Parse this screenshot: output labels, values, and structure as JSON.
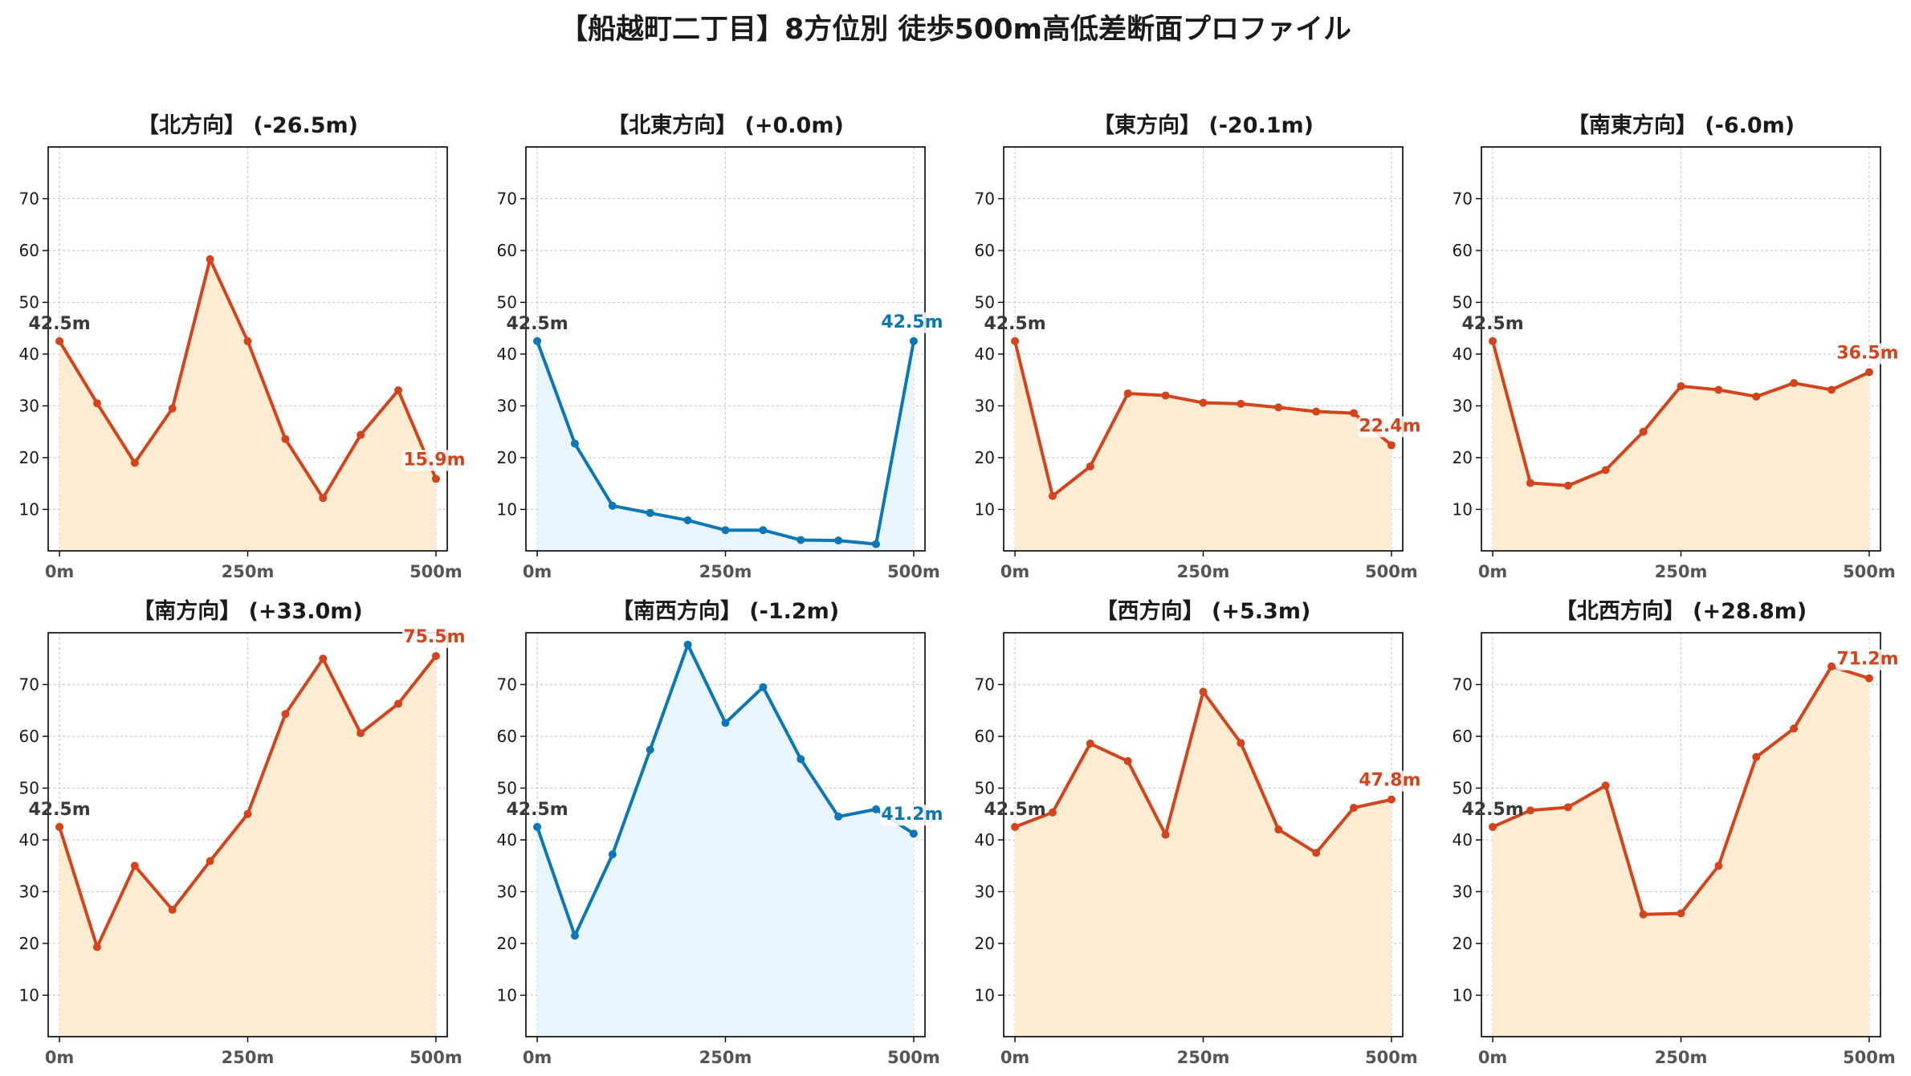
{
  "title": "【船越町二丁目】8方位別 徒歩500m高低差断面プロファイル",
  "colors": {
    "down_line": "#d4441c",
    "down_fill": "#fdebd2",
    "up_line": "#0b77b7",
    "up_fill": "#e9f5fc",
    "start_label": "#3a3a3a",
    "grid": "#c9c9c9"
  },
  "chart_data": [
    {
      "type": "area",
      "title": "【北方向】 (-26.5m)",
      "theme": "orange",
      "x": [
        0,
        50,
        100,
        150,
        200,
        250,
        300,
        350,
        400,
        450,
        500
      ],
      "y": [
        42.5,
        30.5,
        19.0,
        29.5,
        58.3,
        42.5,
        23.6,
        12.2,
        24.4,
        33.0,
        15.9
      ],
      "start_label": "42.5m",
      "end_label": "15.9m",
      "xticks": [
        0,
        250,
        500
      ],
      "xtick_labels": [
        "0m",
        "250m",
        "500m"
      ],
      "yticks": [
        10,
        20,
        30,
        40,
        50,
        60,
        70
      ],
      "ylim": [
        2,
        80
      ],
      "xlim": [
        -15,
        515
      ],
      "grid": true
    },
    {
      "type": "area",
      "title": "【北東方向】 (+0.0m)",
      "theme": "blue",
      "x": [
        0,
        50,
        100,
        150,
        200,
        250,
        300,
        350,
        400,
        450,
        500
      ],
      "y": [
        42.5,
        22.7,
        10.7,
        9.3,
        7.9,
        6.0,
        6.0,
        4.1,
        4.0,
        3.3,
        42.5
      ],
      "start_label": "42.5m",
      "end_label": "42.5m",
      "xticks": [
        0,
        250,
        500
      ],
      "xtick_labels": [
        "0m",
        "250m",
        "500m"
      ],
      "yticks": [
        10,
        20,
        30,
        40,
        50,
        60,
        70
      ],
      "ylim": [
        2,
        80
      ],
      "xlim": [
        -15,
        515
      ],
      "grid": true
    },
    {
      "type": "area",
      "title": "【東方向】 (-20.1m)",
      "theme": "orange",
      "x": [
        0,
        50,
        100,
        150,
        200,
        250,
        300,
        350,
        400,
        450,
        500
      ],
      "y": [
        42.5,
        12.6,
        18.3,
        32.4,
        32.0,
        30.6,
        30.4,
        29.7,
        28.9,
        28.6,
        22.4
      ],
      "start_label": "42.5m",
      "end_label": "22.4m",
      "xticks": [
        0,
        250,
        500
      ],
      "xtick_labels": [
        "0m",
        "250m",
        "500m"
      ],
      "yticks": [
        10,
        20,
        30,
        40,
        50,
        60,
        70
      ],
      "ylim": [
        2,
        80
      ],
      "xlim": [
        -15,
        515
      ],
      "grid": true
    },
    {
      "type": "area",
      "title": "【南東方向】 (-6.0m)",
      "theme": "orange",
      "x": [
        0,
        50,
        100,
        150,
        200,
        250,
        300,
        350,
        400,
        450,
        500
      ],
      "y": [
        42.5,
        15.1,
        14.6,
        17.6,
        25.0,
        33.8,
        33.1,
        31.8,
        34.4,
        33.1,
        36.5
      ],
      "start_label": "42.5m",
      "end_label": "36.5m",
      "xticks": [
        0,
        250,
        500
      ],
      "xtick_labels": [
        "0m",
        "250m",
        "500m"
      ],
      "yticks": [
        10,
        20,
        30,
        40,
        50,
        60,
        70
      ],
      "ylim": [
        2,
        80
      ],
      "xlim": [
        -15,
        515
      ],
      "grid": true
    },
    {
      "type": "area",
      "title": "【南方向】 (+33.0m)",
      "theme": "orange",
      "x": [
        0,
        50,
        100,
        150,
        200,
        250,
        300,
        350,
        400,
        450,
        500
      ],
      "y": [
        42.5,
        19.3,
        35.0,
        26.5,
        35.9,
        45.0,
        64.3,
        75.0,
        60.6,
        66.3,
        75.5
      ],
      "start_label": "42.5m",
      "end_label": "75.5m",
      "xticks": [
        0,
        250,
        500
      ],
      "xtick_labels": [
        "0m",
        "250m",
        "500m"
      ],
      "yticks": [
        10,
        20,
        30,
        40,
        50,
        60,
        70
      ],
      "ylim": [
        2,
        80
      ],
      "xlim": [
        -15,
        515
      ],
      "grid": true
    },
    {
      "type": "area",
      "title": "【南西方向】 (-1.2m)",
      "theme": "blue",
      "x": [
        0,
        50,
        100,
        150,
        200,
        250,
        300,
        350,
        400,
        450,
        500
      ],
      "y": [
        42.5,
        21.5,
        37.2,
        57.4,
        77.7,
        62.6,
        69.5,
        55.6,
        44.5,
        45.9,
        41.2
      ],
      "start_label": "42.5m",
      "end_label": "41.2m",
      "xticks": [
        0,
        250,
        500
      ],
      "xtick_labels": [
        "0m",
        "250m",
        "500m"
      ],
      "yticks": [
        10,
        20,
        30,
        40,
        50,
        60,
        70
      ],
      "ylim": [
        2,
        80
      ],
      "xlim": [
        -15,
        515
      ],
      "grid": true
    },
    {
      "type": "area",
      "title": "【西方向】 (+5.3m)",
      "theme": "orange",
      "x": [
        0,
        50,
        100,
        150,
        200,
        250,
        300,
        350,
        400,
        450,
        500
      ],
      "y": [
        42.5,
        45.3,
        58.6,
        55.2,
        41.0,
        68.6,
        58.7,
        42.0,
        37.5,
        46.2,
        47.8
      ],
      "start_label": "42.5m",
      "end_label": "47.8m",
      "xticks": [
        0,
        250,
        500
      ],
      "xtick_labels": [
        "0m",
        "250m",
        "500m"
      ],
      "yticks": [
        10,
        20,
        30,
        40,
        50,
        60,
        70
      ],
      "ylim": [
        2,
        80
      ],
      "xlim": [
        -15,
        515
      ],
      "grid": true
    },
    {
      "type": "area",
      "title": "【北西方向】 (+28.8m)",
      "theme": "orange",
      "x": [
        0,
        50,
        100,
        150,
        200,
        250,
        300,
        350,
        400,
        450,
        500
      ],
      "y": [
        42.5,
        45.7,
        46.3,
        50.5,
        25.6,
        25.8,
        35.0,
        56.0,
        61.5,
        73.5,
        71.2
      ],
      "start_label": "42.5m",
      "end_label": "71.2m",
      "xticks": [
        0,
        250,
        500
      ],
      "xtick_labels": [
        "0m",
        "250m",
        "500m"
      ],
      "yticks": [
        10,
        20,
        30,
        40,
        50,
        60,
        70
      ],
      "ylim": [
        2,
        80
      ],
      "xlim": [
        -15,
        515
      ],
      "grid": true
    }
  ]
}
